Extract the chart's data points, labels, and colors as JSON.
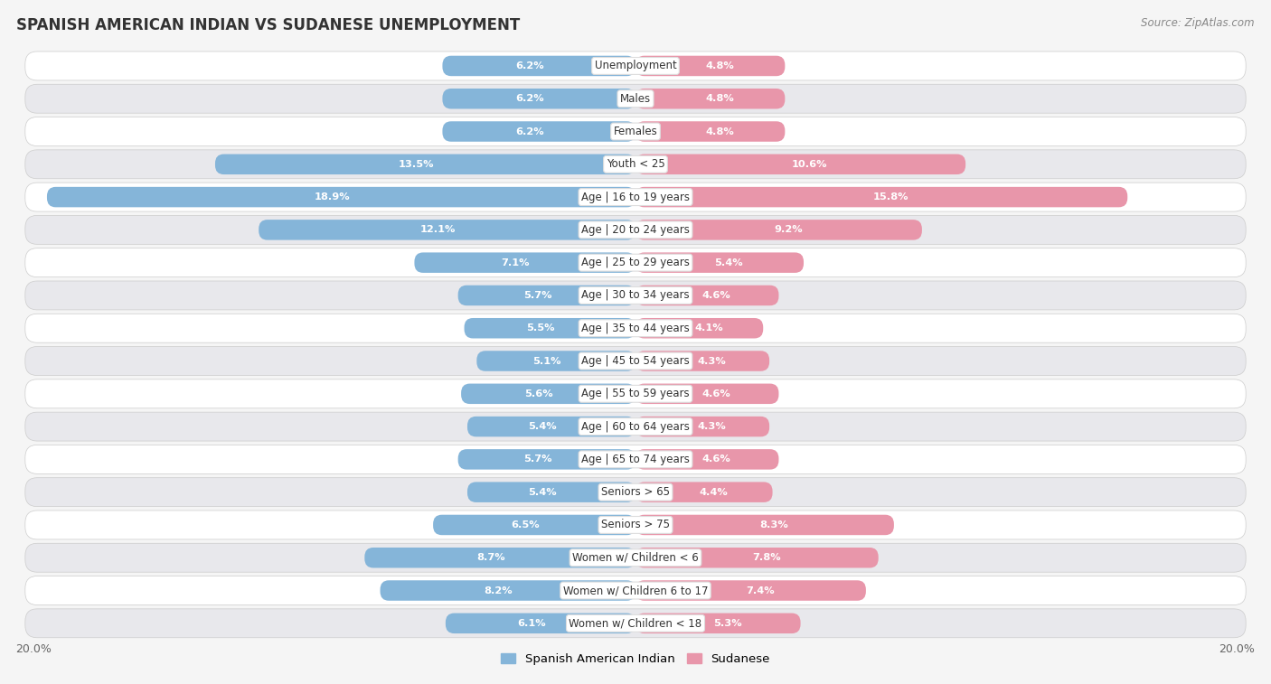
{
  "title": "SPANISH AMERICAN INDIAN VS SUDANESE UNEMPLOYMENT",
  "source": "Source: ZipAtlas.com",
  "categories": [
    "Unemployment",
    "Males",
    "Females",
    "Youth < 25",
    "Age | 16 to 19 years",
    "Age | 20 to 24 years",
    "Age | 25 to 29 years",
    "Age | 30 to 34 years",
    "Age | 35 to 44 years",
    "Age | 45 to 54 years",
    "Age | 55 to 59 years",
    "Age | 60 to 64 years",
    "Age | 65 to 74 years",
    "Seniors > 65",
    "Seniors > 75",
    "Women w/ Children < 6",
    "Women w/ Children 6 to 17",
    "Women w/ Children < 18"
  ],
  "spanish_american_indian": [
    6.2,
    6.2,
    6.2,
    13.5,
    18.9,
    12.1,
    7.1,
    5.7,
    5.5,
    5.1,
    5.6,
    5.4,
    5.7,
    5.4,
    6.5,
    8.7,
    8.2,
    6.1
  ],
  "sudanese": [
    4.8,
    4.8,
    4.8,
    10.6,
    15.8,
    9.2,
    5.4,
    4.6,
    4.1,
    4.3,
    4.6,
    4.3,
    4.6,
    4.4,
    8.3,
    7.8,
    7.4,
    5.3
  ],
  "blue_color": "#85b5d9",
  "pink_color": "#e896aa",
  "bg_color": "#f5f5f5",
  "row_bg_light": "#ffffff",
  "row_bg_dark": "#e8e8ec",
  "xlim": 20.0,
  "bar_height": 0.62,
  "label_fontsize": 8.5,
  "value_fontsize": 8.2,
  "title_fontsize": 12,
  "source_fontsize": 8.5,
  "legend_blue": "Spanish American Indian",
  "legend_pink": "Sudanese"
}
